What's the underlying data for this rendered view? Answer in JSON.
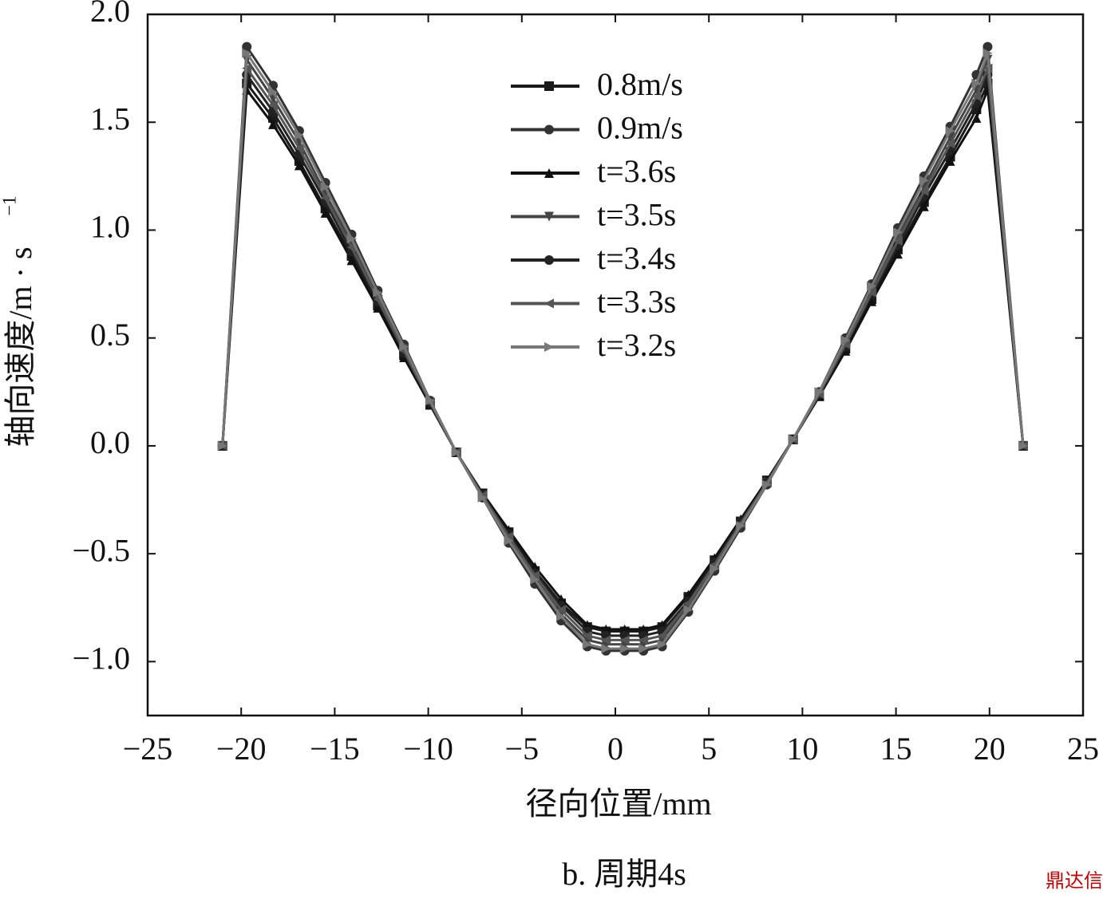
{
  "chart_data": {
    "type": "line",
    "y_label": "轴向速度/m · s",
    "y_label_sup": "−1",
    "x_label": "径向位置/mm",
    "caption": "b. 周期4s",
    "watermark": "鼎达信",
    "xlim": [
      -25,
      25
    ],
    "xticks": [
      {
        "value": -25,
        "label": "−25"
      },
      {
        "value": -20,
        "label": "−20"
      },
      {
        "value": -15,
        "label": "−15"
      },
      {
        "value": -10,
        "label": "−10"
      },
      {
        "value": -5,
        "label": "−5"
      },
      0,
      5,
      10,
      15,
      20,
      25
    ],
    "ylim": [
      -1.25,
      2.0
    ],
    "yticks": [
      {
        "value": -1.0,
        "label": "−1.0"
      },
      {
        "value": -0.5,
        "label": "−0.5"
      },
      {
        "value": 0.0,
        "label": "0.0"
      },
      0.5,
      {
        "value": 1.0,
        "label": "1.0"
      },
      1.5,
      {
        "value": 2.0,
        "label": "2.0"
      }
    ],
    "grid": false,
    "legend": "top-center",
    "x": [
      -21,
      -19.7,
      -18.3,
      -16.9,
      -15.5,
      -14.1,
      -12.7,
      -11.3,
      -9.9,
      -8.5,
      -7.1,
      -5.7,
      -4.3,
      -2.9,
      -1.5,
      -0.5,
      0.5,
      1.5,
      2.5,
      3.9,
      5.3,
      6.7,
      8.1,
      9.5,
      10.9,
      12.3,
      13.7,
      15.1,
      16.5,
      17.9,
      19.3,
      19.9,
      21.8
    ],
    "series": [
      {
        "name": "0.8m/s",
        "color": "#1a1a1a",
        "marker": "square",
        "values": [
          0,
          1.68,
          1.52,
          1.32,
          1.1,
          0.88,
          0.65,
          0.42,
          0.19,
          -0.03,
          -0.22,
          -0.4,
          -0.58,
          -0.73,
          -0.84,
          -0.86,
          -0.86,
          -0.86,
          -0.84,
          -0.7,
          -0.53,
          -0.35,
          -0.16,
          0.03,
          0.23,
          0.45,
          0.68,
          0.91,
          1.13,
          1.34,
          1.56,
          1.68,
          0
        ]
      },
      {
        "name": "0.9m/s",
        "color": "#333333",
        "marker": "circle",
        "values": [
          0,
          1.85,
          1.67,
          1.46,
          1.22,
          0.98,
          0.72,
          0.47,
          0.21,
          -0.03,
          -0.24,
          -0.45,
          -0.64,
          -0.81,
          -0.93,
          -0.95,
          -0.95,
          -0.95,
          -0.93,
          -0.77,
          -0.58,
          -0.38,
          -0.18,
          0.03,
          0.25,
          0.5,
          0.75,
          1.01,
          1.25,
          1.48,
          1.72,
          1.85,
          0
        ]
      },
      {
        "name": "t=3.6s",
        "color": "#111111",
        "marker": "triangle",
        "values": [
          0,
          1.65,
          1.49,
          1.3,
          1.08,
          0.86,
          0.64,
          0.41,
          0.19,
          -0.03,
          -0.22,
          -0.39,
          -0.56,
          -0.71,
          -0.83,
          -0.85,
          -0.85,
          -0.85,
          -0.83,
          -0.69,
          -0.52,
          -0.34,
          -0.16,
          0.03,
          0.23,
          0.44,
          0.67,
          0.89,
          1.11,
          1.32,
          1.52,
          1.65,
          0
        ]
      },
      {
        "name": "t=3.5s",
        "color": "#444444",
        "marker": "triangle-down",
        "values": [
          0,
          1.79,
          1.61,
          1.41,
          1.17,
          0.94,
          0.69,
          0.45,
          0.2,
          -0.03,
          -0.23,
          -0.43,
          -0.61,
          -0.78,
          -0.9,
          -0.92,
          -0.92,
          -0.92,
          -0.9,
          -0.74,
          -0.56,
          -0.37,
          -0.17,
          0.03,
          0.24,
          0.48,
          0.72,
          0.97,
          1.2,
          1.43,
          1.65,
          1.79,
          0
        ]
      },
      {
        "name": "t=3.4s",
        "color": "#222222",
        "marker": "circle",
        "values": [
          0,
          1.72,
          1.55,
          1.35,
          1.13,
          0.9,
          0.67,
          0.43,
          0.2,
          -0.03,
          -0.23,
          -0.41,
          -0.59,
          -0.74,
          -0.86,
          -0.88,
          -0.88,
          -0.88,
          -0.86,
          -0.72,
          -0.54,
          -0.35,
          -0.17,
          0.03,
          0.24,
          0.46,
          0.7,
          0.93,
          1.16,
          1.37,
          1.59,
          1.72,
          0
        ]
      },
      {
        "name": "t=3.3s",
        "color": "#555555",
        "marker": "triangle-left",
        "values": [
          0,
          1.75,
          1.58,
          1.38,
          1.15,
          0.92,
          0.68,
          0.44,
          0.2,
          -0.03,
          -0.23,
          -0.42,
          -0.6,
          -0.76,
          -0.88,
          -0.9,
          -0.9,
          -0.9,
          -0.88,
          -0.73,
          -0.55,
          -0.36,
          -0.17,
          0.03,
          0.24,
          0.47,
          0.71,
          0.95,
          1.18,
          1.4,
          1.62,
          1.75,
          0
        ]
      },
      {
        "name": "t=3.2s",
        "color": "#777777",
        "marker": "triangle-right",
        "values": [
          0,
          1.82,
          1.64,
          1.44,
          1.2,
          0.96,
          0.71,
          0.46,
          0.21,
          -0.03,
          -0.24,
          -0.44,
          -0.62,
          -0.79,
          -0.92,
          -0.94,
          -0.94,
          -0.94,
          -0.92,
          -0.76,
          -0.57,
          -0.37,
          -0.18,
          0.03,
          0.25,
          0.49,
          0.74,
          0.99,
          1.23,
          1.46,
          1.68,
          1.82,
          0
        ]
      }
    ]
  }
}
